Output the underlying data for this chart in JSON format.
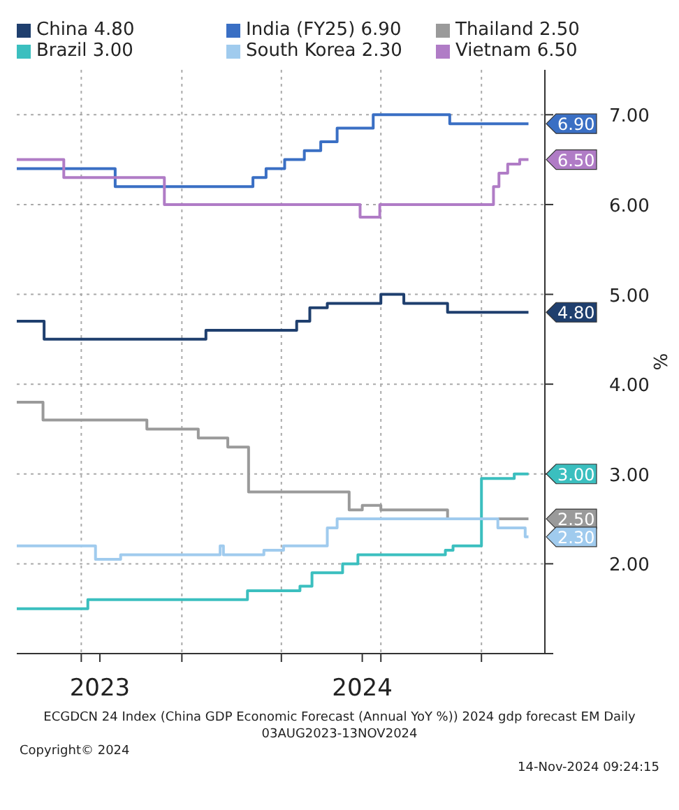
{
  "chart_data": {
    "type": "step",
    "ylabel": "%",
    "legend": "top",
    "grid": true,
    "xlim": [
      "2023-08-03",
      "2024-11-28"
    ],
    "xticks": [
      {
        "value": "2023-10-01",
        "label": null
      },
      {
        "value": "2023-10-18",
        "label": "2023"
      },
      {
        "value": "2024-01-01",
        "label": null
      },
      {
        "value": "2024-04-01",
        "label": null
      },
      {
        "value": "2024-06-14",
        "label": "2024"
      },
      {
        "value": "2024-07-01",
        "label": null
      },
      {
        "value": "2024-10-01",
        "label": null
      }
    ],
    "ylim": [
      1,
      7.5
    ],
    "yticks": [
      {
        "value": 1,
        "label": null
      },
      {
        "value": 2,
        "label": "2.00"
      },
      {
        "value": 3,
        "label": "3.00"
      },
      {
        "value": 4,
        "label": "4.00"
      },
      {
        "value": 5,
        "label": "5.00"
      },
      {
        "value": 6,
        "label": "6.00"
      },
      {
        "value": 7,
        "label": "7.00"
      }
    ],
    "annotations": [
      "ECGDCN 24 Index (China GDP Economic Forecast (Annual YoY %)) 2024 gdp forecast EM  Daily 03AUG2023-13NOV2024",
      "Copyright© 2024",
      "14-Nov-2024 09:24:15"
    ],
    "series": [
      {
        "name": "China",
        "color": "#1f3f6e",
        "x": [
          "2023-08-03",
          "2023-08-25",
          "2023-08-28",
          "2024-01-20",
          "2024-01-23",
          "2024-04-06",
          "2024-04-15",
          "2024-04-27",
          "2024-05-13",
          "2024-06-28",
          "2024-07-01",
          "2024-07-20",
          "2024-07-22",
          "2024-08-28",
          "2024-08-31",
          "2024-11-13"
        ],
        "values": [
          4.7,
          4.7,
          4.5,
          4.5,
          4.6,
          4.6,
          4.7,
          4.85,
          4.9,
          4.9,
          5.0,
          5.0,
          4.9,
          4.9,
          4.8,
          4.8
        ],
        "value_labels": [
          null,
          null,
          null,
          null,
          null,
          null,
          null,
          null,
          null,
          null,
          null,
          null,
          null,
          null,
          null,
          "4.80"
        ]
      },
      {
        "name": "India (FY25)",
        "color": "#3a6fc4",
        "x": [
          "2023-08-03",
          "2023-10-30",
          "2023-11-01",
          "2024-03-05",
          "2024-03-06",
          "2024-03-17",
          "2024-03-18",
          "2024-04-02",
          "2024-04-04",
          "2024-04-20",
          "2024-04-22",
          "2024-05-05",
          "2024-05-07",
          "2024-05-20",
          "2024-05-22",
          "2024-06-22",
          "2024-06-24",
          "2024-08-31",
          "2024-09-02",
          "2024-11-13"
        ],
        "values": [
          6.4,
          6.4,
          6.2,
          6.2,
          6.3,
          6.3,
          6.4,
          6.4,
          6.5,
          6.5,
          6.6,
          6.6,
          6.7,
          6.7,
          6.85,
          6.85,
          7.0,
          7.0,
          6.9,
          6.9
        ],
        "value_labels": [
          null,
          null,
          null,
          null,
          null,
          null,
          null,
          null,
          null,
          null,
          null,
          null,
          null,
          null,
          null,
          null,
          null,
          null,
          null,
          "6.90"
        ]
      },
      {
        "name": "Thailand",
        "color": "#9a9a9a",
        "x": [
          "2023-08-03",
          "2023-08-25",
          "2023-08-27",
          "2023-11-28",
          "2023-11-30",
          "2024-01-14",
          "2024-01-16",
          "2024-02-10",
          "2024-02-12",
          "2024-02-28",
          "2024-03-02",
          "2024-05-26",
          "2024-06-02",
          "2024-06-12",
          "2024-06-14",
          "2024-06-30",
          "2024-07-01",
          "2024-08-28",
          "2024-08-31",
          "2024-11-13"
        ],
        "values": [
          3.8,
          3.8,
          3.6,
          3.6,
          3.5,
          3.5,
          3.4,
          3.4,
          3.3,
          3.3,
          2.8,
          2.8,
          2.6,
          2.6,
          2.65,
          2.65,
          2.6,
          2.6,
          2.5,
          2.5
        ],
        "value_labels": [
          null,
          null,
          null,
          null,
          null,
          null,
          null,
          null,
          null,
          null,
          null,
          null,
          null,
          null,
          null,
          null,
          null,
          null,
          null,
          "2.50"
        ]
      },
      {
        "name": "Brazil",
        "color": "#3bbfbf",
        "x": [
          "2023-08-03",
          "2023-10-05",
          "2023-10-07",
          "2024-02-28",
          "2024-03-01",
          "2024-04-16",
          "2024-04-18",
          "2024-04-27",
          "2024-04-29",
          "2024-05-25",
          "2024-05-27",
          "2024-06-08",
          "2024-06-10",
          "2024-08-27",
          "2024-08-29",
          "2024-09-03",
          "2024-09-05",
          "2024-09-29",
          "2024-10-01",
          "2024-10-29",
          "2024-10-31",
          "2024-11-13"
        ],
        "values": [
          1.5,
          1.5,
          1.6,
          1.6,
          1.7,
          1.7,
          1.75,
          1.75,
          1.9,
          1.9,
          2.0,
          2.0,
          2.1,
          2.1,
          2.15,
          2.15,
          2.2,
          2.2,
          2.95,
          2.95,
          3.0,
          3.0
        ],
        "value_labels": [
          null,
          null,
          null,
          null,
          null,
          null,
          null,
          null,
          null,
          null,
          null,
          null,
          null,
          null,
          null,
          null,
          null,
          null,
          null,
          null,
          null,
          "3.00"
        ]
      },
      {
        "name": "South Korea",
        "color": "#a0cbee",
        "x": [
          "2023-08-03",
          "2023-10-12",
          "2023-10-14",
          "2023-11-04",
          "2023-11-06",
          "2024-02-03",
          "2024-02-05",
          "2024-02-08",
          "2024-03-14",
          "2024-03-16",
          "2024-04-01",
          "2024-04-03",
          "2024-05-11",
          "2024-05-13",
          "2024-05-20",
          "2024-05-22",
          "2024-10-14",
          "2024-10-16",
          "2024-11-08",
          "2024-11-10",
          "2024-11-13"
        ],
        "values": [
          2.2,
          2.2,
          2.05,
          2.05,
          2.1,
          2.1,
          2.2,
          2.1,
          2.1,
          2.15,
          2.15,
          2.2,
          2.2,
          2.4,
          2.4,
          2.5,
          2.5,
          2.4,
          2.4,
          2.3,
          2.3
        ],
        "value_labels": [
          null,
          null,
          null,
          null,
          null,
          null,
          null,
          null,
          null,
          null,
          null,
          null,
          null,
          null,
          null,
          null,
          null,
          null,
          null,
          null,
          "2.30"
        ]
      },
      {
        "name": "Vietnam",
        "color": "#b07cc6",
        "x": [
          "2023-08-03",
          "2023-08-28",
          "2023-09-15",
          "2023-12-14",
          "2023-12-16",
          "2024-06-09",
          "2024-06-12",
          "2024-06-25",
          "2024-06-30",
          "2024-10-09",
          "2024-10-12",
          "2024-10-17",
          "2024-10-25",
          "2024-11-05",
          "2024-11-13"
        ],
        "values": [
          6.5,
          6.5,
          6.3,
          6.3,
          6.0,
          6.0,
          5.86,
          5.86,
          6.0,
          6.0,
          6.2,
          6.35,
          6.45,
          6.5,
          6.5
        ],
        "value_labels": [
          null,
          null,
          null,
          null,
          null,
          null,
          null,
          null,
          null,
          null,
          null,
          null,
          null,
          null,
          "6.50"
        ]
      }
    ]
  }
}
